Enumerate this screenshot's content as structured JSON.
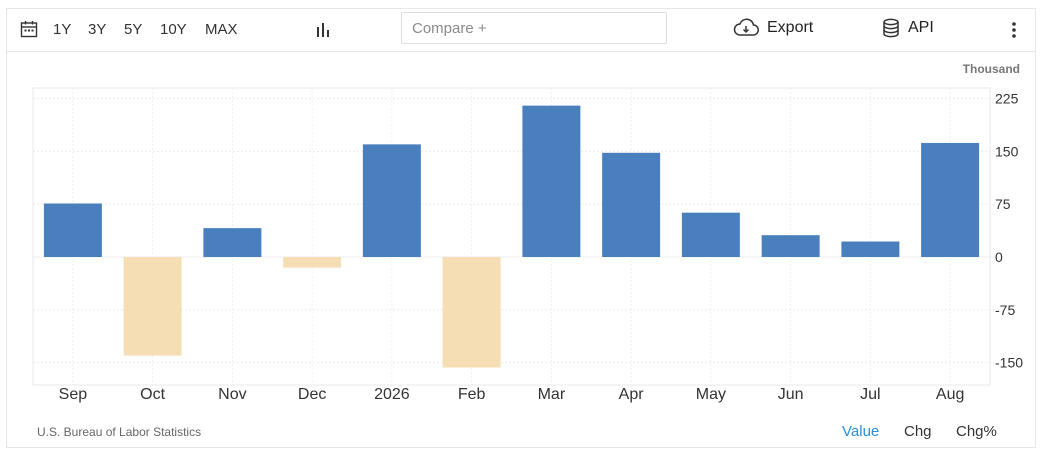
{
  "toolbar": {
    "ranges": [
      "1Y",
      "3Y",
      "5Y",
      "10Y",
      "MAX"
    ],
    "compare_placeholder": "Compare +",
    "export_label": "Export",
    "api_label": "API"
  },
  "unit_label": "Thousand",
  "source": "U.S. Bureau of Labor Statistics",
  "modes": [
    "Value",
    "Chg",
    "Chg%"
  ],
  "active_mode": "Value",
  "colors": {
    "positive": "#4a7fbd",
    "negative": "#f5deb3",
    "active_mode": "#2a8fd6"
  },
  "chart_data": {
    "type": "bar",
    "categories": [
      "Sep",
      "Oct",
      "Nov",
      "Dec",
      "2026",
      "Feb",
      "Mar",
      "Apr",
      "May",
      "Jun",
      "Jul",
      "Aug"
    ],
    "values": [
      76,
      -140,
      41,
      -15,
      160,
      -157,
      215,
      148,
      63,
      31,
      22,
      162
    ],
    "yticks": [
      225,
      150,
      75,
      0,
      -75,
      -150
    ],
    "ylim": [
      -185,
      245
    ],
    "y_axis_position": "right",
    "grid": true,
    "ylabel": "Thousand"
  }
}
